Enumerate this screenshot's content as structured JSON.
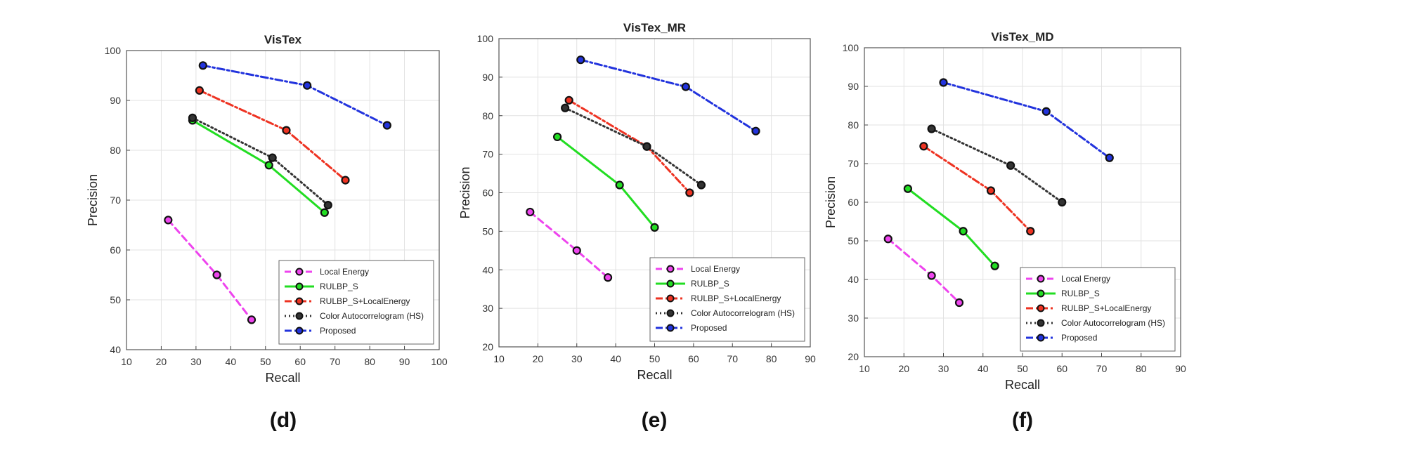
{
  "chart_data": [
    {
      "type": "line",
      "caption": "(d)",
      "title": "VisTex",
      "xlabel": "Recall",
      "ylabel": "Precision",
      "xlim": [
        10,
        100
      ],
      "ylim": [
        40,
        100
      ],
      "xticks": [
        "10",
        "20",
        "30",
        "40",
        "50",
        "60",
        "70",
        "80",
        "90",
        "100"
      ],
      "yticks": [
        "40",
        "50",
        "60",
        "70",
        "80",
        "90",
        "100"
      ],
      "grid": true,
      "legend_position": "bottom-right",
      "series": [
        {
          "name": "Local Energy",
          "color": "#ee44ee",
          "dash": "dashed",
          "x": [
            22,
            36,
            46
          ],
          "y": [
            66,
            55,
            46
          ]
        },
        {
          "name": "RULBP_S",
          "color": "#22dd22",
          "dash": "solid",
          "x": [
            29,
            51,
            67
          ],
          "y": [
            86,
            77,
            67.5
          ]
        },
        {
          "name": "RULBP_S+LocalEnergy",
          "color": "#ee3322",
          "dash": "dashdot",
          "x": [
            31,
            56,
            73
          ],
          "y": [
            92,
            84,
            74
          ]
        },
        {
          "name": "Color Autocorrelogram (HS)",
          "color": "#333333",
          "dash": "dotted",
          "x": [
            29,
            52,
            68
          ],
          "y": [
            86.5,
            78.5,
            69
          ]
        },
        {
          "name": "Proposed",
          "color": "#2233dd",
          "dash": "dashdot",
          "x": [
            32,
            62,
            85
          ],
          "y": [
            97,
            93,
            85
          ]
        }
      ]
    },
    {
      "type": "line",
      "caption": "(e)",
      "title": "VisTex_MR",
      "xlabel": "Recall",
      "ylabel": "Precision",
      "xlim": [
        10,
        90
      ],
      "ylim": [
        20,
        100
      ],
      "xticks": [
        "10",
        "20",
        "30",
        "40",
        "50",
        "60",
        "70",
        "80",
        "90"
      ],
      "yticks": [
        "20",
        "30",
        "40",
        "50",
        "60",
        "70",
        "80",
        "90",
        "100"
      ],
      "grid": true,
      "legend_position": "bottom-right",
      "series": [
        {
          "name": "Local Energy",
          "color": "#ee44ee",
          "dash": "dashed",
          "x": [
            18,
            30,
            38
          ],
          "y": [
            55,
            45,
            38
          ]
        },
        {
          "name": "RULBP_S",
          "color": "#22dd22",
          "dash": "solid",
          "x": [
            25,
            41,
            50
          ],
          "y": [
            74.5,
            62,
            51
          ]
        },
        {
          "name": "RULBP_S+LocalEnergy",
          "color": "#ee3322",
          "dash": "dashdot",
          "x": [
            28,
            48,
            59
          ],
          "y": [
            84,
            72,
            60
          ]
        },
        {
          "name": "Color Autocorrelogram (HS)",
          "color": "#333333",
          "dash": "dotted",
          "x": [
            27,
            48,
            62
          ],
          "y": [
            82,
            72,
            62
          ]
        },
        {
          "name": "Proposed",
          "color": "#2233dd",
          "dash": "dashdot",
          "x": [
            31,
            58,
            76
          ],
          "y": [
            94.5,
            87.5,
            76
          ]
        }
      ]
    },
    {
      "type": "line",
      "caption": "(f)",
      "title": "VisTex_MD",
      "xlabel": "Recall",
      "ylabel": "Precision",
      "xlim": [
        10,
        90
      ],
      "ylim": [
        20,
        100
      ],
      "xticks": [
        "10",
        "20",
        "30",
        "40",
        "50",
        "60",
        "70",
        "80",
        "90"
      ],
      "yticks": [
        "20",
        "30",
        "40",
        "50",
        "60",
        "70",
        "80",
        "90",
        "100"
      ],
      "grid": true,
      "legend_position": "bottom-right",
      "series": [
        {
          "name": "Local Energy",
          "color": "#ee44ee",
          "dash": "dashed",
          "x": [
            16,
            27,
            34
          ],
          "y": [
            50.5,
            41,
            34
          ]
        },
        {
          "name": "RULBP_S",
          "color": "#22dd22",
          "dash": "solid",
          "x": [
            21,
            35,
            43
          ],
          "y": [
            63.5,
            52.5,
            43.5
          ]
        },
        {
          "name": "RULBP_S+LocalEnergy",
          "color": "#ee3322",
          "dash": "dashdot",
          "x": [
            25,
            42,
            52
          ],
          "y": [
            74.5,
            63,
            52.5
          ]
        },
        {
          "name": "Color Autocorrelogram (HS)",
          "color": "#333333",
          "dash": "dotted",
          "x": [
            27,
            47,
            60
          ],
          "y": [
            79,
            69.5,
            60
          ]
        },
        {
          "name": "Proposed",
          "color": "#2233dd",
          "dash": "dashdot",
          "x": [
            30,
            56,
            72
          ],
          "y": [
            91,
            83.5,
            71.5
          ]
        }
      ]
    }
  ]
}
